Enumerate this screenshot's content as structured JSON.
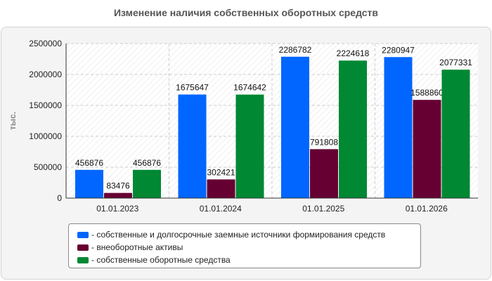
{
  "title": "Изменение наличия собственных оборотных средств",
  "chart_data": {
    "type": "bar",
    "categories": [
      "01.01.2023",
      "01.01.2024",
      "01.01.2025",
      "01.01.2026"
    ],
    "series": [
      {
        "name": "- собственные и долгосрочные заемные источники формирования средств",
        "color": "#0066ff",
        "values": [
          456876,
          1675647,
          2286782,
          2280947
        ]
      },
      {
        "name": "- внеоборотные активы",
        "color": "#660033",
        "values": [
          83476,
          302421,
          791808,
          1588860
        ]
      },
      {
        "name": "- собственные оборотные средства",
        "color": "#008833",
        "values": [
          456876,
          1674642,
          2224618,
          2077331
        ]
      }
    ],
    "ylabel": "тыс.",
    "ylim": [
      0,
      2500000
    ],
    "yticks": [
      0,
      500000,
      1000000,
      1500000,
      2000000,
      2500000
    ],
    "grid": true,
    "legend": "bottom"
  }
}
